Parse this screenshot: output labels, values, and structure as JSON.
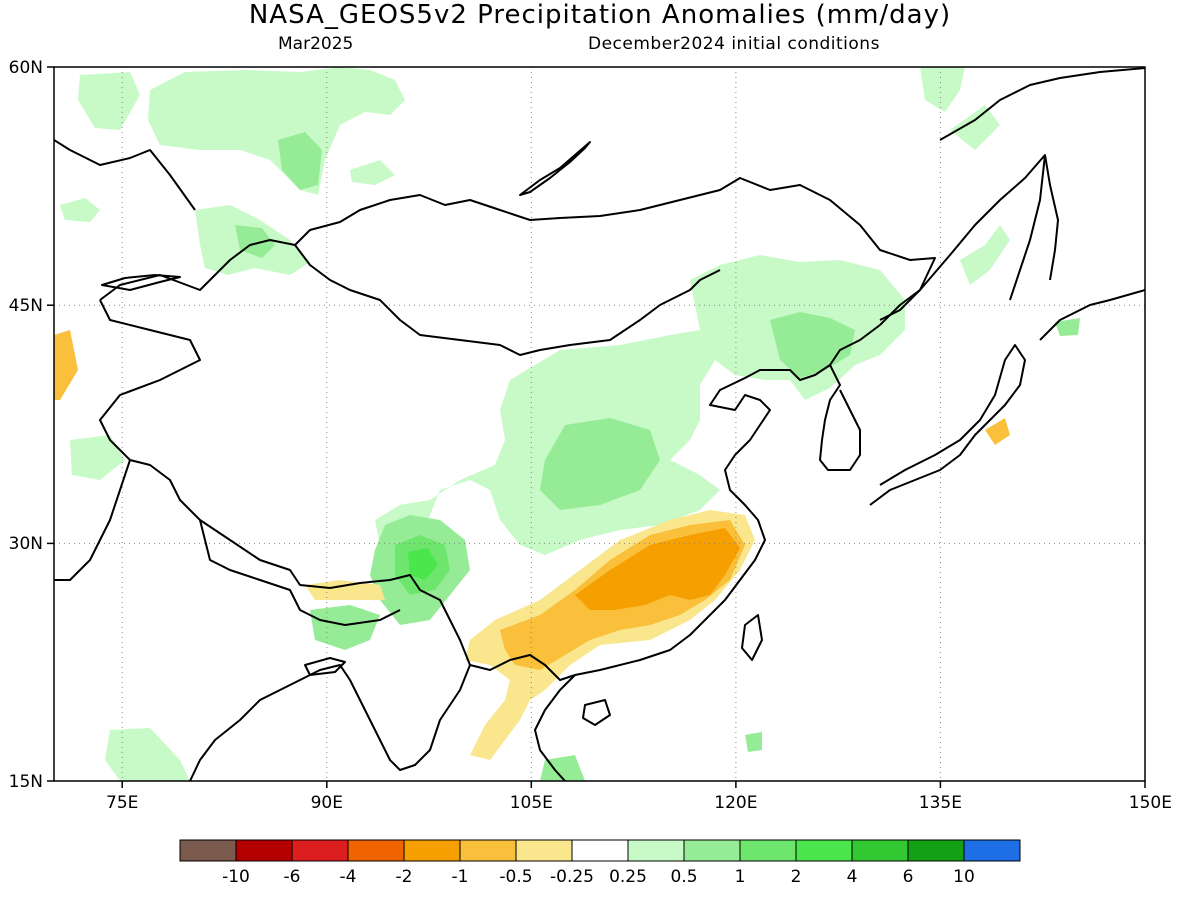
{
  "title": "NASA_GEOS5v2 Precipitation Anomalies (mm/day)",
  "subtitle_left": "Mar2025",
  "subtitle_right": "December2024 initial conditions",
  "map": {
    "lat_range": [
      15,
      60
    ],
    "lon_range": [
      70,
      150
    ],
    "lat_ticks": [
      "15N",
      "30N",
      "45N",
      "60N"
    ],
    "lon_ticks": [
      "75E",
      "90E",
      "105E",
      "120E",
      "135E",
      "150E"
    ],
    "grid": "dotted"
  },
  "colorbar": {
    "colors": [
      "#7b5a4e",
      "#b40000",
      "#dc1e1e",
      "#f06400",
      "#f5a000",
      "#fac03c",
      "#fae68c",
      "#ffffff",
      "#c8fac8",
      "#96eb96",
      "#6ee66e",
      "#4be64b",
      "#32c832",
      "#14a014",
      "#1e6ee6"
    ],
    "labels": [
      "-10",
      "-6",
      "-4",
      "-2",
      "-1",
      "-0.5",
      "-0.25",
      "0.25",
      "0.5",
      "1",
      "2",
      "4",
      "6",
      "10"
    ]
  },
  "anomaly_colors": {
    "light_green": "#c8fac8",
    "green": "#96eb96",
    "mid_green": "#6ee66e",
    "dark_green": "#4be64b",
    "light_yellow": "#fae68c",
    "yellow_orange": "#fac03c",
    "orange": "#f5a000"
  }
}
